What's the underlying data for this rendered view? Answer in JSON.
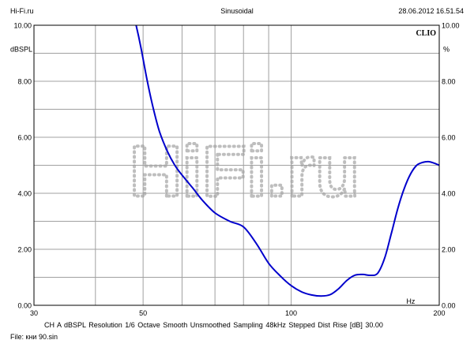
{
  "header": {
    "left": "Hi-Fi.ru",
    "center": "Sinusoidal",
    "right": "28.06.2012 16.51.54"
  },
  "footer": {
    "settings": "CH A   dBSPL   Resolution 1/6 Octave   Smooth Unsmoothed   Sampling 48kHz   Stepped   Dist Rise [dB] 30.00",
    "file": "File: кни 90.sin"
  },
  "watermark": "HiFi.ru",
  "brand": "CLIO",
  "chart_data": {
    "type": "line",
    "title": "Sinusoidal",
    "xscale": "log",
    "xlim": [
      30,
      200
    ],
    "ylim": [
      0,
      10
    ],
    "xticks": [
      30,
      50,
      100,
      200
    ],
    "yticks": [
      0,
      2,
      4,
      6,
      8,
      10
    ],
    "ytick_labels": [
      "0.00",
      "2.00",
      "4.00",
      "6.00",
      "8.00",
      "10.00"
    ],
    "ylabel_left": "dBSPL",
    "ylabel_right": "%",
    "xunit": "Hz",
    "grid": true,
    "line_color": "#0000cc",
    "series": [
      {
        "x": [
          48.4,
          49.5,
          51,
          52.5,
          54,
          56,
          58,
          60,
          63,
          66,
          70,
          75,
          80,
          85,
          90,
          95,
          100,
          105,
          110,
          115,
          120,
          125,
          130,
          135,
          140,
          145,
          150,
          155,
          160,
          165,
          170,
          175,
          180,
          185,
          190,
          195,
          200
        ],
        "y": [
          10.0,
          9.2,
          8.0,
          7.0,
          6.2,
          5.5,
          5.0,
          4.65,
          4.2,
          3.75,
          3.3,
          3.0,
          2.8,
          2.2,
          1.5,
          1.05,
          0.7,
          0.48,
          0.37,
          0.33,
          0.38,
          0.6,
          0.9,
          1.08,
          1.1,
          1.07,
          1.15,
          1.7,
          2.6,
          3.5,
          4.2,
          4.7,
          5.0,
          5.1,
          5.13,
          5.08,
          5.0
        ]
      }
    ]
  }
}
